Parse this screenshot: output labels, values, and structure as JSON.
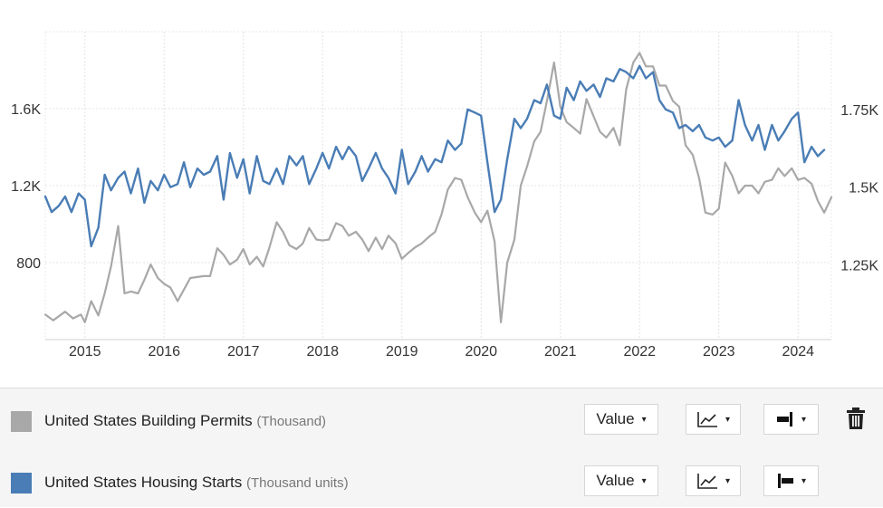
{
  "chart_data": {
    "type": "line",
    "x_ticks": [
      "2015",
      "2016",
      "2017",
      "2018",
      "2019",
      "2020",
      "2021",
      "2022",
      "2023",
      "2024"
    ],
    "xlim": [
      2014.5,
      2024.42
    ],
    "left_axis": {
      "ticks": [
        "800",
        "1.2K",
        "1.6K"
      ],
      "tick_values": [
        800,
        1200,
        1600
      ],
      "ylim": [
        400,
        2000
      ]
    },
    "right_axis": {
      "ticks": [
        "1.25K",
        "1.5K",
        "1.75K"
      ],
      "tick_values": [
        1250,
        1500,
        1750
      ],
      "ylim": [
        1010,
        2000
      ]
    },
    "grid": true,
    "series": [
      {
        "name": "United States Building Permits",
        "unit": "(Thousand)",
        "axis": "left",
        "color": "#a8a8a8",
        "points": [
          [
            2014.5,
            530
          ],
          [
            2014.6,
            500
          ],
          [
            2014.75,
            545
          ],
          [
            2014.85,
            510
          ],
          [
            2014.95,
            530
          ],
          [
            2015.0,
            490
          ],
          [
            2015.08,
            600
          ],
          [
            2015.17,
            525
          ],
          [
            2015.25,
            640
          ],
          [
            2015.33,
            780
          ],
          [
            2015.42,
            990
          ],
          [
            2015.5,
            640
          ],
          [
            2015.58,
            650
          ],
          [
            2015.67,
            640
          ],
          [
            2015.75,
            710
          ],
          [
            2015.83,
            790
          ],
          [
            2015.92,
            720
          ],
          [
            2016.0,
            690
          ],
          [
            2016.08,
            670
          ],
          [
            2016.17,
            600
          ],
          [
            2016.25,
            660
          ],
          [
            2016.33,
            720
          ],
          [
            2016.42,
            725
          ],
          [
            2016.5,
            730
          ],
          [
            2016.58,
            730
          ],
          [
            2016.67,
            875
          ],
          [
            2016.75,
            840
          ],
          [
            2016.83,
            790
          ],
          [
            2016.92,
            815
          ],
          [
            2017.0,
            870
          ],
          [
            2017.08,
            790
          ],
          [
            2017.17,
            830
          ],
          [
            2017.25,
            780
          ],
          [
            2017.33,
            880
          ],
          [
            2017.42,
            1010
          ],
          [
            2017.5,
            960
          ],
          [
            2017.58,
            890
          ],
          [
            2017.67,
            870
          ],
          [
            2017.75,
            900
          ],
          [
            2017.83,
            980
          ],
          [
            2017.92,
            920
          ],
          [
            2018.0,
            915
          ],
          [
            2018.08,
            920
          ],
          [
            2018.17,
            1005
          ],
          [
            2018.25,
            990
          ],
          [
            2018.33,
            940
          ],
          [
            2018.42,
            960
          ],
          [
            2018.5,
            920
          ],
          [
            2018.58,
            860
          ],
          [
            2018.67,
            930
          ],
          [
            2018.75,
            870
          ],
          [
            2018.83,
            940
          ],
          [
            2018.92,
            900
          ],
          [
            2019.0,
            820
          ],
          [
            2019.08,
            850
          ],
          [
            2019.17,
            880
          ],
          [
            2019.25,
            900
          ],
          [
            2019.33,
            930
          ],
          [
            2019.42,
            960
          ],
          [
            2019.5,
            1050
          ],
          [
            2019.58,
            1180
          ],
          [
            2019.67,
            1240
          ],
          [
            2019.75,
            1230
          ],
          [
            2019.83,
            1140
          ],
          [
            2019.92,
            1060
          ],
          [
            2020.0,
            1010
          ],
          [
            2020.08,
            1070
          ],
          [
            2020.17,
            910
          ],
          [
            2020.25,
            490
          ],
          [
            2020.33,
            800
          ],
          [
            2020.42,
            920
          ],
          [
            2020.5,
            1200
          ],
          [
            2020.58,
            1300
          ],
          [
            2020.67,
            1430
          ],
          [
            2020.75,
            1480
          ],
          [
            2020.83,
            1640
          ],
          [
            2020.92,
            1840
          ],
          [
            2021.0,
            1610
          ],
          [
            2021.08,
            1530
          ],
          [
            2021.17,
            1500
          ],
          [
            2021.25,
            1470
          ],
          [
            2021.33,
            1650
          ],
          [
            2021.42,
            1560
          ],
          [
            2021.5,
            1480
          ],
          [
            2021.58,
            1450
          ],
          [
            2021.67,
            1500
          ],
          [
            2021.75,
            1410
          ],
          [
            2021.83,
            1700
          ],
          [
            2021.92,
            1840
          ],
          [
            2022.0,
            1890
          ],
          [
            2022.08,
            1820
          ],
          [
            2022.17,
            1820
          ],
          [
            2022.25,
            1720
          ],
          [
            2022.33,
            1720
          ],
          [
            2022.42,
            1640
          ],
          [
            2022.5,
            1610
          ],
          [
            2022.58,
            1410
          ],
          [
            2022.67,
            1360
          ],
          [
            2022.75,
            1240
          ],
          [
            2022.83,
            1060
          ],
          [
            2022.92,
            1050
          ],
          [
            2023.0,
            1080
          ],
          [
            2023.08,
            1320
          ],
          [
            2023.17,
            1250
          ],
          [
            2023.25,
            1160
          ],
          [
            2023.33,
            1200
          ],
          [
            2023.42,
            1200
          ],
          [
            2023.5,
            1160
          ],
          [
            2023.58,
            1220
          ],
          [
            2023.67,
            1230
          ],
          [
            2023.75,
            1290
          ],
          [
            2023.83,
            1250
          ],
          [
            2023.92,
            1290
          ],
          [
            2024.0,
            1230
          ],
          [
            2024.08,
            1240
          ],
          [
            2024.17,
            1210
          ],
          [
            2024.25,
            1120
          ],
          [
            2024.33,
            1060
          ],
          [
            2024.42,
            1140
          ]
        ]
      },
      {
        "name": "United States Housing Starts",
        "unit": "(Thousand units)",
        "axis": "right",
        "color": "#4a7db5",
        "points": [
          [
            2014.5,
            1470
          ],
          [
            2014.58,
            1420
          ],
          [
            2014.67,
            1440
          ],
          [
            2014.75,
            1470
          ],
          [
            2014.83,
            1420
          ],
          [
            2014.92,
            1480
          ],
          [
            2015.0,
            1460
          ],
          [
            2015.08,
            1310
          ],
          [
            2015.17,
            1370
          ],
          [
            2015.25,
            1540
          ],
          [
            2015.33,
            1490
          ],
          [
            2015.42,
            1530
          ],
          [
            2015.5,
            1550
          ],
          [
            2015.58,
            1480
          ],
          [
            2015.67,
            1560
          ],
          [
            2015.75,
            1450
          ],
          [
            2015.83,
            1520
          ],
          [
            2015.92,
            1490
          ],
          [
            2016.0,
            1540
          ],
          [
            2016.08,
            1500
          ],
          [
            2016.17,
            1510
          ],
          [
            2016.25,
            1580
          ],
          [
            2016.33,
            1500
          ],
          [
            2016.42,
            1560
          ],
          [
            2016.5,
            1540
          ],
          [
            2016.58,
            1550
          ],
          [
            2016.67,
            1600
          ],
          [
            2016.75,
            1460
          ],
          [
            2016.83,
            1610
          ],
          [
            2016.92,
            1530
          ],
          [
            2017.0,
            1590
          ],
          [
            2017.08,
            1480
          ],
          [
            2017.17,
            1600
          ],
          [
            2017.25,
            1520
          ],
          [
            2017.33,
            1510
          ],
          [
            2017.42,
            1560
          ],
          [
            2017.5,
            1510
          ],
          [
            2017.58,
            1600
          ],
          [
            2017.67,
            1570
          ],
          [
            2017.75,
            1600
          ],
          [
            2017.83,
            1510
          ],
          [
            2017.92,
            1560
          ],
          [
            2018.0,
            1610
          ],
          [
            2018.08,
            1560
          ],
          [
            2018.17,
            1630
          ],
          [
            2018.25,
            1590
          ],
          [
            2018.33,
            1630
          ],
          [
            2018.42,
            1600
          ],
          [
            2018.5,
            1520
          ],
          [
            2018.58,
            1560
          ],
          [
            2018.67,
            1610
          ],
          [
            2018.75,
            1560
          ],
          [
            2018.83,
            1530
          ],
          [
            2018.92,
            1480
          ],
          [
            2019.0,
            1620
          ],
          [
            2019.08,
            1510
          ],
          [
            2019.17,
            1550
          ],
          [
            2019.25,
            1600
          ],
          [
            2019.33,
            1550
          ],
          [
            2019.42,
            1590
          ],
          [
            2019.5,
            1580
          ],
          [
            2019.58,
            1650
          ],
          [
            2019.67,
            1620
          ],
          [
            2019.75,
            1640
          ],
          [
            2019.83,
            1750
          ],
          [
            2019.92,
            1740
          ],
          [
            2020.0,
            1730
          ],
          [
            2020.08,
            1580
          ],
          [
            2020.17,
            1420
          ],
          [
            2020.25,
            1460
          ],
          [
            2020.33,
            1590
          ],
          [
            2020.42,
            1720
          ],
          [
            2020.5,
            1690
          ],
          [
            2020.58,
            1720
          ],
          [
            2020.67,
            1780
          ],
          [
            2020.75,
            1770
          ],
          [
            2020.83,
            1830
          ],
          [
            2020.92,
            1730
          ],
          [
            2021.0,
            1720
          ],
          [
            2021.08,
            1820
          ],
          [
            2021.17,
            1780
          ],
          [
            2021.25,
            1840
          ],
          [
            2021.33,
            1810
          ],
          [
            2021.42,
            1830
          ],
          [
            2021.5,
            1790
          ],
          [
            2021.58,
            1850
          ],
          [
            2021.67,
            1840
          ],
          [
            2021.75,
            1880
          ],
          [
            2021.83,
            1870
          ],
          [
            2021.92,
            1850
          ],
          [
            2022.0,
            1890
          ],
          [
            2022.08,
            1850
          ],
          [
            2022.17,
            1870
          ],
          [
            2022.25,
            1780
          ],
          [
            2022.33,
            1750
          ],
          [
            2022.42,
            1740
          ],
          [
            2022.5,
            1690
          ],
          [
            2022.58,
            1700
          ],
          [
            2022.67,
            1680
          ],
          [
            2022.75,
            1700
          ],
          [
            2022.83,
            1660
          ],
          [
            2022.92,
            1650
          ],
          [
            2023.0,
            1660
          ],
          [
            2023.08,
            1630
          ],
          [
            2023.17,
            1650
          ],
          [
            2023.25,
            1780
          ],
          [
            2023.33,
            1700
          ],
          [
            2023.42,
            1650
          ],
          [
            2023.5,
            1700
          ],
          [
            2023.58,
            1620
          ],
          [
            2023.67,
            1700
          ],
          [
            2023.75,
            1650
          ],
          [
            2023.83,
            1680
          ],
          [
            2023.92,
            1720
          ],
          [
            2024.0,
            1740
          ],
          [
            2024.08,
            1580
          ],
          [
            2024.17,
            1630
          ],
          [
            2024.25,
            1600
          ],
          [
            2024.33,
            1620
          ]
        ]
      }
    ]
  },
  "legend": {
    "rows": [
      {
        "name": "United States Building Permits",
        "unit": "(Thousand)",
        "color": "#a8a8a8",
        "value_label": "Value",
        "chart_type_icon": "line-chart-icon",
        "axis_icon": "axis-right-icon",
        "delete_icon": "trash-icon"
      },
      {
        "name": "United States Housing Starts",
        "unit": "(Thousand units)",
        "color": "#4a7db5",
        "value_label": "Value",
        "chart_type_icon": "line-chart-icon",
        "axis_icon": "axis-left-icon"
      }
    ],
    "caret": "▾"
  }
}
